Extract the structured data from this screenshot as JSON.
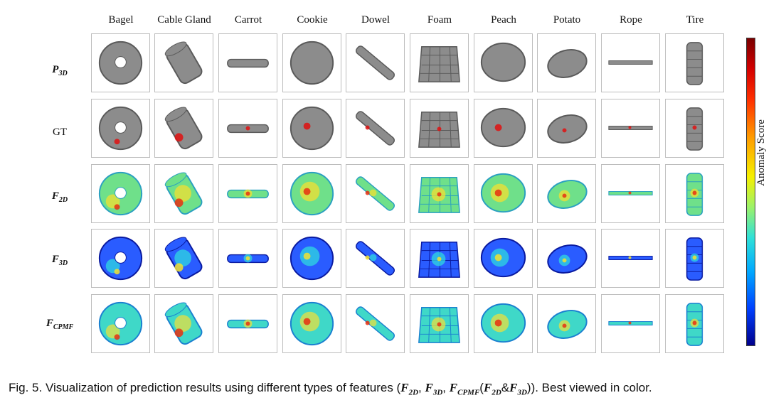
{
  "columns": [
    "Bagel",
    "Cable Gland",
    "Carrot",
    "Cookie",
    "Dowel",
    "Foam",
    "Peach",
    "Potato",
    "Rope",
    "Tire"
  ],
  "rows": [
    {
      "id": "p3d",
      "label_main": "P",
      "label_sub": "3D"
    },
    {
      "id": "gt",
      "label_main": "GT",
      "label_sub": ""
    },
    {
      "id": "f2d",
      "label_main": "F",
      "label_sub": "2D"
    },
    {
      "id": "f3d",
      "label_main": "F",
      "label_sub": "3D"
    },
    {
      "id": "fcpmf",
      "label_main": "F",
      "label_sub": "CPMF"
    }
  ],
  "colorbar": {
    "label": "Anomaly Score",
    "colors": [
      "#7a0000",
      "#d40000",
      "#ff3000",
      "#ff9a00",
      "#f6f000",
      "#9cf26a",
      "#2fe0d8",
      "#00a8ff",
      "#0040ff",
      "#00008c"
    ]
  },
  "caption": {
    "prefix": "Fig. 5. Visualization of prediction results using different types of features (",
    "f": "F",
    "s2d": "2D",
    "s3d": "3D",
    "scpmf": "CPMF",
    "comma": ",",
    "open": "(",
    "amp": "&",
    "suffix": ")). Best viewed in color."
  }
}
